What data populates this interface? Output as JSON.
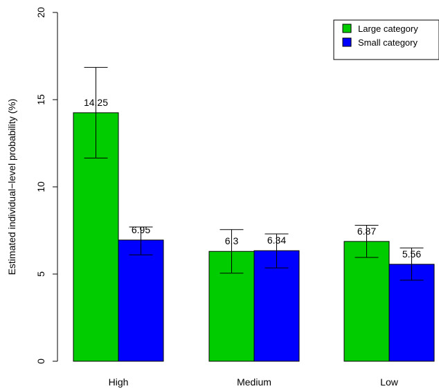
{
  "chart_data": {
    "type": "bar",
    "title": "",
    "xlabel": "",
    "ylabel": "Estimated individual−level probability (%)",
    "categories": [
      "High",
      "Medium",
      "Low"
    ],
    "ylim": [
      0,
      20
    ],
    "yticks": [
      0,
      5,
      10,
      15,
      20
    ],
    "grid": false,
    "legend_position": "top-right",
    "series": [
      {
        "name": "Large category",
        "color": "#00cc00",
        "values": [
          14.25,
          6.3,
          6.87
        ],
        "labels": [
          "14.25",
          "6.3",
          "6.87"
        ],
        "error_low": [
          11.65,
          5.05,
          5.95
        ],
        "error_high": [
          16.85,
          7.55,
          7.8
        ]
      },
      {
        "name": "Small category",
        "color": "#0000ff",
        "values": [
          6.95,
          6.34,
          5.56
        ],
        "labels": [
          "6.95",
          "6.34",
          "5.56"
        ],
        "error_low": [
          6.1,
          5.35,
          4.65
        ],
        "error_high": [
          7.7,
          7.3,
          6.5
        ]
      }
    ]
  }
}
